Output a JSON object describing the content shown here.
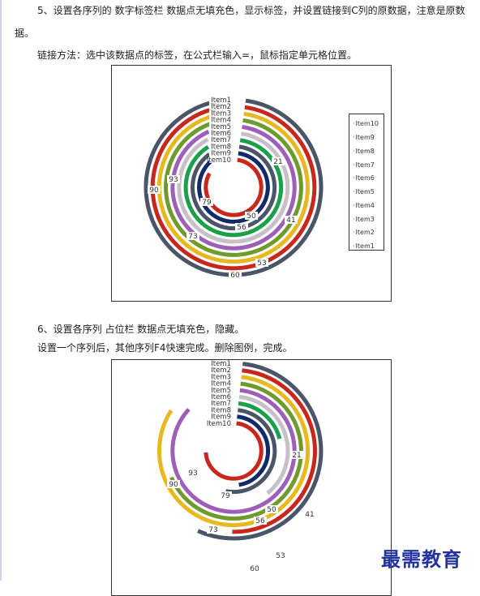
{
  "paragraphs": {
    "p1_line1": "5、设置各序列的 数字标签栏 数据点无填充色，显示标签，并设置链接到C列的原数据，注意是原数",
    "p1_line2": "据。",
    "p2": "链接方法：选中该数据点的标签，在公式栏输入=，鼠标指定单元格位置。",
    "p3": "6、设置各序列 占位栏 数据点无填充色，隐藏。",
    "p4": "设置一个序列后，其他序列F4快速完成。删除图例，完成。"
  },
  "watermark": "最需教育",
  "chart_data": [
    {
      "type": "radial bar (doughnut)",
      "categories": [
        "Item1",
        "Item2",
        "Item3",
        "Item4",
        "Item5",
        "Item6",
        "Item7",
        "Item8",
        "Item9",
        "Item10"
      ],
      "values": [
        60,
        53,
        null,
        null,
        null,
        41,
        null,
        56,
        50,
        79
      ],
      "category_values_labels_shown": {
        "Item1": "60",
        "Item2": "53",
        "Item6": "41",
        "Item8": "56",
        "Item9": "50",
        "Item10": "79",
        "other_labels": [
          "90",
          "93",
          "73",
          "21"
        ]
      },
      "colors": [
        "#4a5567",
        "#c8271e",
        "#e8b820",
        "#6f9a2e",
        "#9d5fb8",
        "#c8c0c8",
        "#1aa04a",
        "#4a5567",
        "#102a6a",
        "#c8271e"
      ],
      "legend": {
        "position": "right",
        "entries": [
          "Item10",
          "Item9",
          "Item8",
          "Item7",
          "Item6",
          "Item5",
          "Item4",
          "Item3",
          "Item2",
          "Item1"
        ]
      }
    },
    {
      "type": "radial bar (doughnut)",
      "categories": [
        "Item1",
        "Item2",
        "Item3",
        "Item4",
        "Item5",
        "Item6",
        "Item7",
        "Item8",
        "Item9",
        "Item10"
      ],
      "value_labels": [
        "60",
        "53",
        "90",
        "73",
        "93",
        "41",
        "21",
        "56",
        "50",
        "79"
      ],
      "legend": "none"
    }
  ]
}
